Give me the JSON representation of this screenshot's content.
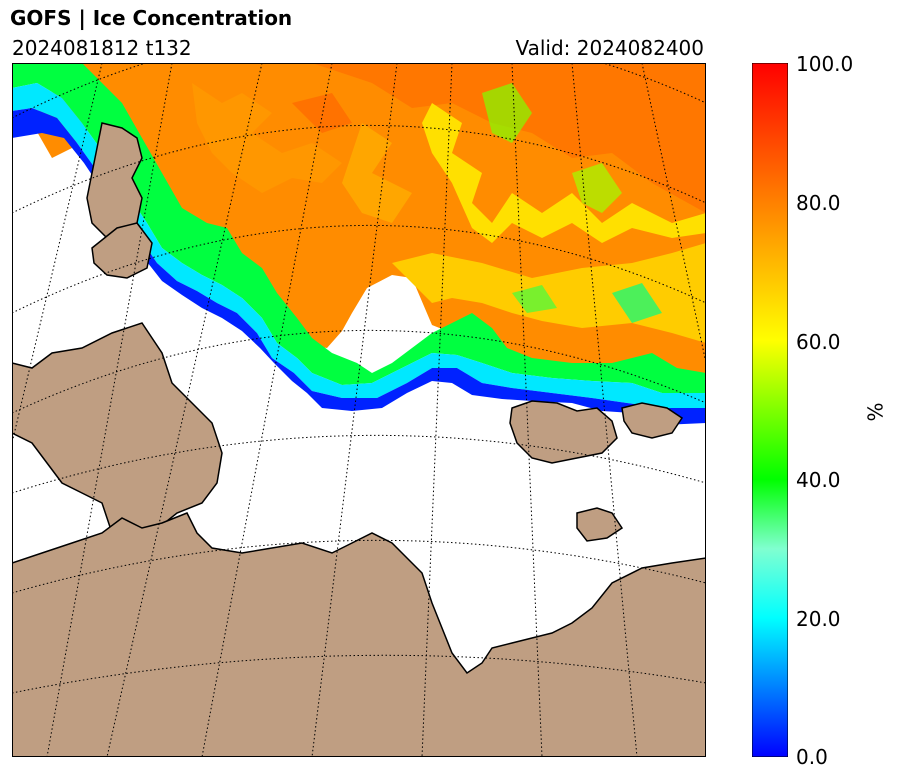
{
  "header": {
    "title": "GOFS  |  Ice Concentration",
    "run": "2024081812 t132",
    "valid": "Valid: 2024082400"
  },
  "colorbar": {
    "label": "%",
    "ticks": [
      "100.0",
      "80.0",
      "60.0",
      "40.0",
      "20.0",
      "0.0"
    ],
    "colors": [
      "#ff0000",
      "#ff8000",
      "#ffff00",
      "#00ff00",
      "#00ffff",
      "#0000ff"
    ]
  },
  "map": {
    "land_color": "#bf9e82",
    "ocean_color": "#ffffff",
    "grid_style": "dotted"
  }
}
